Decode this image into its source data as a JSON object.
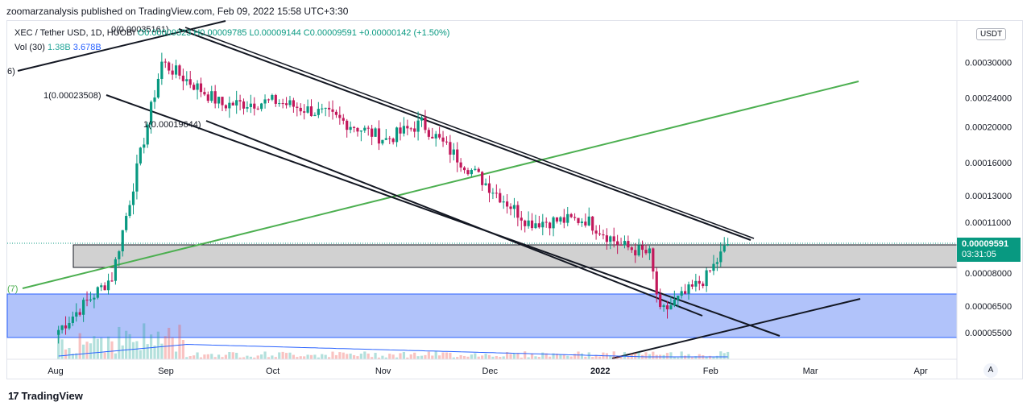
{
  "header": {
    "published": "zoomarzanalysis published on TradingView.com, Feb 09, 2022 15:58 UTC+3:30"
  },
  "legend": {
    "symbol": "XEC / Tether USD, 1D, HUOBI",
    "ohlc": "O0.00009323  H0.00009785  L0.00009144  C0.00009591  +0.00000142 (+1.50%)"
  },
  "volume": {
    "label": "Vol (30)",
    "value1": "1.38B",
    "value2": "3.678B"
  },
  "currency_badge": "USDT",
  "last_price": {
    "price": "0.00009591",
    "countdown": "03:31:05"
  },
  "footer": {
    "brand": "TradingView",
    "logo": "17"
  },
  "scale_button": "A",
  "colors": {
    "up": "#089981",
    "down": "#c2185b",
    "zone_gray": "#d1d1d1",
    "zone_blue": "#a8bcfa",
    "trend_green": "#4caf50"
  },
  "annotations": {
    "fib_top": "0(0.00035161)",
    "fib_mid": "1(0.00023508)",
    "fib_low": "1(0.00019644)",
    "left_cut_top": "6)",
    "left_cut_bottom": "(7)"
  },
  "chart_data": {
    "type": "candlestick",
    "y_scale": "log",
    "ylim": [
      4.8e-05,
      0.00037
    ],
    "y_ticks": [
      "0.00030000",
      "0.00024000",
      "0.00020000",
      "0.00016000",
      "0.00013000",
      "0.00011000",
      "0.00008000",
      "0.00006500",
      "0.00005500"
    ],
    "x_ticks": [
      "Aug",
      "Sep",
      "Oct",
      "Nov",
      "Dec",
      "2022",
      "Feb",
      "Mar",
      "Apr"
    ],
    "trend": [
      {
        "t": "Aug 05",
        "p": 5.6e-05
      },
      {
        "t": "Aug 20",
        "p": 7.8e-05
      },
      {
        "t": "Sep 03",
        "p": 0.0003
      },
      {
        "t": "Sep 20",
        "p": 0.00023
      },
      {
        "t": "Oct 05",
        "p": 0.000235
      },
      {
        "t": "Oct 20",
        "p": 0.000215
      },
      {
        "t": "Nov 05",
        "p": 0.000185
      },
      {
        "t": "Nov 15",
        "p": 0.000205
      },
      {
        "t": "Nov 25",
        "p": 0.000165
      },
      {
        "t": "Dec 05",
        "p": 0.000135
      },
      {
        "t": "Dec 15",
        "p": 0.00011
      },
      {
        "t": "Dec 31",
        "p": 0.000112
      },
      {
        "t": "Jan 10",
        "p": 9.5e-05
      },
      {
        "t": "Jan 18",
        "p": 9e-05
      },
      {
        "t": "Jan 21",
        "p": 6.2e-05
      },
      {
        "t": "Jan 28",
        "p": 7e-05
      },
      {
        "t": "Feb 03",
        "p": 7.8e-05
      },
      {
        "t": "Feb 09",
        "p": 9.591e-05
      }
    ],
    "last_price": 9.591e-05
  }
}
